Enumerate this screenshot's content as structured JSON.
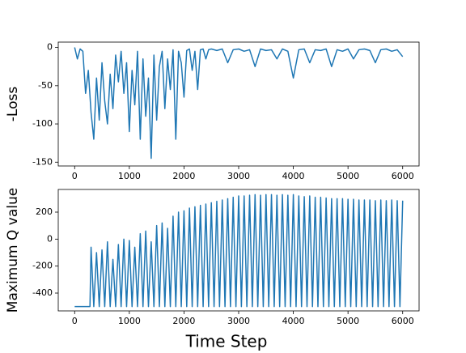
{
  "chart_data": [
    {
      "type": "line",
      "ylabel": "-Loss",
      "x": [
        0,
        50,
        100,
        150,
        200,
        250,
        300,
        350,
        400,
        450,
        500,
        550,
        600,
        650,
        700,
        750,
        800,
        850,
        900,
        950,
        1000,
        1050,
        1100,
        1150,
        1200,
        1250,
        1300,
        1350,
        1400,
        1450,
        1500,
        1550,
        1600,
        1650,
        1700,
        1750,
        1800,
        1850,
        1900,
        1950,
        2000,
        2050,
        2100,
        2150,
        2200,
        2250,
        2300,
        2350,
        2400,
        2450,
        2500,
        2600,
        2700,
        2800,
        2900,
        3000,
        3100,
        3200,
        3300,
        3400,
        3500,
        3600,
        3700,
        3800,
        3900,
        4000,
        4100,
        4200,
        4300,
        4400,
        4500,
        4600,
        4700,
        4800,
        4900,
        5000,
        5100,
        5200,
        5300,
        5400,
        5500,
        5600,
        5700,
        5800,
        5900,
        6000
      ],
      "values": [
        0,
        -15,
        -2,
        -5,
        -60,
        -30,
        -85,
        -120,
        -40,
        -95,
        -20,
        -70,
        -100,
        -35,
        -80,
        -10,
        -45,
        -5,
        -60,
        -20,
        -110,
        -30,
        -75,
        -5,
        -120,
        -15,
        -90,
        -40,
        -145,
        -10,
        -95,
        -25,
        -5,
        -80,
        -15,
        -55,
        -3,
        -120,
        -5,
        -20,
        -65,
        -4,
        -2,
        -30,
        -5,
        -55,
        -3,
        -2,
        -15,
        -3,
        -2,
        -4,
        -2,
        -20,
        -3,
        -2,
        -5,
        -3,
        -25,
        -2,
        -4,
        -3,
        -15,
        -2,
        -5,
        -40,
        -3,
        -2,
        -20,
        -3,
        -4,
        -2,
        -25,
        -3,
        -5,
        -2,
        -15,
        -3,
        -2,
        -4,
        -20,
        -3,
        -2,
        -5,
        -3,
        -12
      ],
      "color": "#1f77b4",
      "xlim": [
        -300,
        6300
      ],
      "xticks": [
        0,
        1000,
        2000,
        3000,
        4000,
        5000,
        6000
      ],
      "ylim": [
        -155,
        7
      ],
      "yticks": [
        0,
        -50,
        -100,
        -150
      ]
    },
    {
      "type": "line",
      "ylabel": "Maximum Q value",
      "xlabel": "Time Step",
      "x": [
        0,
        280,
        300,
        350,
        400,
        450,
        500,
        550,
        600,
        650,
        700,
        750,
        800,
        850,
        900,
        950,
        1000,
        1050,
        1100,
        1150,
        1200,
        1250,
        1300,
        1350,
        1400,
        1450,
        1500,
        1550,
        1600,
        1650,
        1700,
        1750,
        1800,
        1850,
        1900,
        1950,
        2000,
        2050,
        2100,
        2150,
        2200,
        2250,
        2300,
        2350,
        2400,
        2450,
        2500,
        2550,
        2600,
        2650,
        2700,
        2750,
        2800,
        2850,
        2900,
        2950,
        3000,
        3050,
        3100,
        3150,
        3200,
        3250,
        3300,
        3350,
        3400,
        3450,
        3500,
        3550,
        3600,
        3650,
        3700,
        3750,
        3800,
        3850,
        3900,
        3950,
        4000,
        4050,
        4100,
        4150,
        4200,
        4250,
        4300,
        4350,
        4400,
        4450,
        4500,
        4550,
        4600,
        4650,
        4700,
        4750,
        4800,
        4850,
        4900,
        4950,
        5000,
        5050,
        5100,
        5150,
        5200,
        5250,
        5300,
        5350,
        5400,
        5450,
        5500,
        5550,
        5600,
        5650,
        5700,
        5750,
        5800,
        5850,
        5900,
        5950,
        6000
      ],
      "values": [
        -500,
        -500,
        -60,
        -500,
        -100,
        -500,
        -80,
        -500,
        -20,
        -500,
        -150,
        -500,
        -40,
        -500,
        0,
        -500,
        -10,
        -500,
        -60,
        -500,
        40,
        -500,
        60,
        -500,
        -20,
        -500,
        100,
        -500,
        120,
        -500,
        80,
        -500,
        170,
        -500,
        200,
        -500,
        210,
        -500,
        230,
        -500,
        240,
        -500,
        250,
        -500,
        260,
        -500,
        270,
        -500,
        280,
        -500,
        290,
        -500,
        300,
        -500,
        310,
        -500,
        320,
        -500,
        320,
        -500,
        325,
        -500,
        330,
        -500,
        325,
        -500,
        330,
        -500,
        330,
        -500,
        325,
        -500,
        330,
        -500,
        325,
        -500,
        330,
        -500,
        320,
        -500,
        315,
        -500,
        320,
        -500,
        310,
        -500,
        310,
        -500,
        305,
        -500,
        300,
        -500,
        300,
        -500,
        300,
        -500,
        295,
        -500,
        295,
        -500,
        290,
        -500,
        290,
        -500,
        290,
        -500,
        285,
        -500,
        290,
        -500,
        285,
        -500,
        290,
        -500,
        285,
        -500,
        285
      ],
      "color": "#1f77b4",
      "xlim": [
        -300,
        6300
      ],
      "xticks": [
        0,
        1000,
        2000,
        3000,
        4000,
        5000,
        6000
      ],
      "ylim": [
        -532,
        368
      ],
      "yticks": [
        -400,
        -200,
        0,
        200
      ]
    }
  ]
}
